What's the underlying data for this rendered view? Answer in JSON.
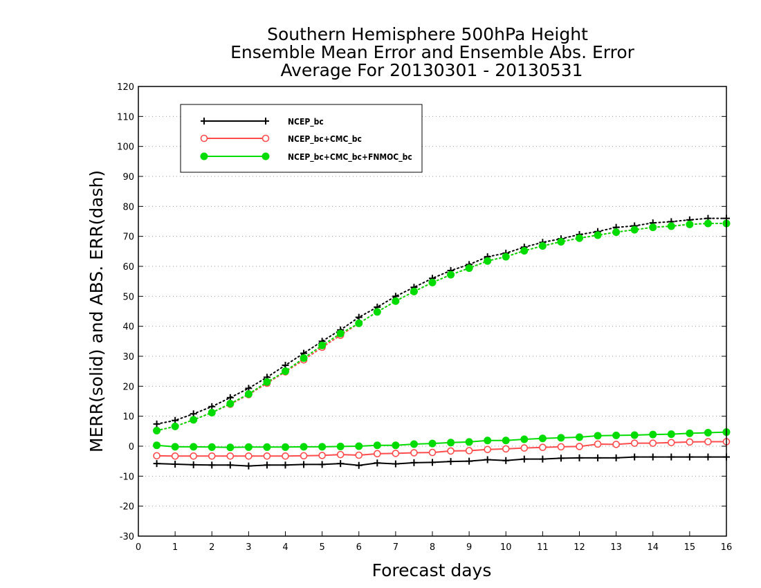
{
  "chart_data": {
    "type": "line",
    "title_lines": [
      "Southern Hemisphere 500hPa Height",
      "Ensemble Mean Error and Ensemble Abs. Error",
      "Average For 20130301 - 20130531"
    ],
    "xlabel": "Forecast days",
    "ylabel": "MERR(solid) and ABS. ERR(dash)",
    "xlim": [
      0,
      16
    ],
    "ylim": [
      -30,
      120
    ],
    "x_ticks": [
      0,
      1,
      2,
      3,
      4,
      5,
      6,
      7,
      8,
      9,
      10,
      11,
      12,
      13,
      14,
      15,
      16
    ],
    "y_ticks": [
      -30,
      -20,
      -10,
      0,
      10,
      20,
      30,
      40,
      50,
      60,
      70,
      80,
      90,
      100,
      110,
      120
    ],
    "grid": "horizontal dotted",
    "legend_position": "top-left",
    "x": [
      0.5,
      1,
      1.5,
      2,
      2.5,
      3,
      3.5,
      4,
      4.5,
      5,
      5.5,
      6,
      6.5,
      7,
      7.5,
      8,
      8.5,
      9,
      9.5,
      10,
      10.5,
      11,
      11.5,
      12,
      12.5,
      13,
      13.5,
      14,
      14.5,
      15,
      15.5,
      16
    ],
    "series": [
      {
        "name": "NCEP_bc",
        "color": "#000000",
        "marker": "plus",
        "merr": [
          -5.8,
          -6.0,
          -6.2,
          -6.3,
          -6.3,
          -6.6,
          -6.3,
          -6.3,
          -6.1,
          -6.1,
          -5.8,
          -6.4,
          -5.6,
          -5.9,
          -5.5,
          -5.4,
          -5.1,
          -5.0,
          -4.5,
          -4.8,
          -4.3,
          -4.3,
          -4.0,
          -3.9,
          -3.9,
          -3.9,
          -3.6,
          -3.6,
          -3.6,
          -3.6,
          -3.6,
          -3.6
        ],
        "abs_err": [
          7.4,
          8.6,
          10.8,
          13.2,
          16.2,
          19.3,
          23.0,
          27.0,
          31.0,
          35.0,
          38.8,
          43.0,
          46.4,
          50.0,
          53.0,
          56.0,
          58.6,
          60.6,
          63.2,
          64.4,
          66.4,
          68.0,
          69.2,
          70.6,
          71.6,
          73.0,
          73.5,
          74.5,
          74.9,
          75.5,
          76.0,
          76.0
        ]
      },
      {
        "name": "NCEP_bc+CMC_bc",
        "color": "#ff4b4b",
        "marker": "circle-open",
        "merr": [
          -3.2,
          -3.3,
          -3.3,
          -3.3,
          -3.3,
          -3.3,
          -3.3,
          -3.3,
          -3.2,
          -3.1,
          -2.8,
          -3.0,
          -2.5,
          -2.4,
          -2.2,
          -2.1,
          -1.6,
          -1.5,
          -1.1,
          -0.9,
          -0.6,
          -0.4,
          -0.2,
          -0.1,
          0.7,
          0.6,
          1.0,
          1.0,
          1.2,
          1.4,
          1.5,
          1.5
        ],
        "abs_err": [
          5.2,
          6.6,
          8.8,
          11.2,
          14.0,
          17.2,
          21.0,
          24.8,
          28.8,
          33.0,
          37.0,
          41.0,
          44.8,
          48.4,
          51.6,
          54.6,
          57.2,
          59.4,
          61.8,
          63.2,
          65.2,
          66.8,
          68.2,
          69.4,
          70.4,
          71.4,
          72.2,
          73.0,
          73.4,
          74.0,
          74.3,
          74.3
        ]
      },
      {
        "name": "NCEP_bc+CMC_bc+FNMOC_bc",
        "color": "#00dc00",
        "marker": "circle-filled",
        "merr": [
          0.3,
          -0.2,
          -0.2,
          -0.3,
          -0.4,
          -0.3,
          -0.3,
          -0.3,
          -0.2,
          -0.2,
          -0.1,
          0.0,
          0.3,
          0.3,
          0.7,
          0.9,
          1.2,
          1.4,
          1.9,
          1.9,
          2.3,
          2.6,
          2.8,
          3.0,
          3.5,
          3.6,
          3.7,
          3.9,
          4.0,
          4.3,
          4.5,
          4.7
        ],
        "abs_err": [
          5.2,
          6.6,
          8.8,
          11.2,
          14.2,
          17.4,
          21.4,
          25.0,
          29.4,
          33.6,
          37.6,
          41.0,
          44.8,
          48.4,
          51.6,
          54.6,
          57.2,
          59.4,
          61.8,
          63.2,
          65.2,
          66.8,
          68.2,
          69.4,
          70.4,
          71.4,
          72.2,
          73.0,
          73.4,
          74.0,
          74.3,
          74.3
        ]
      }
    ]
  }
}
